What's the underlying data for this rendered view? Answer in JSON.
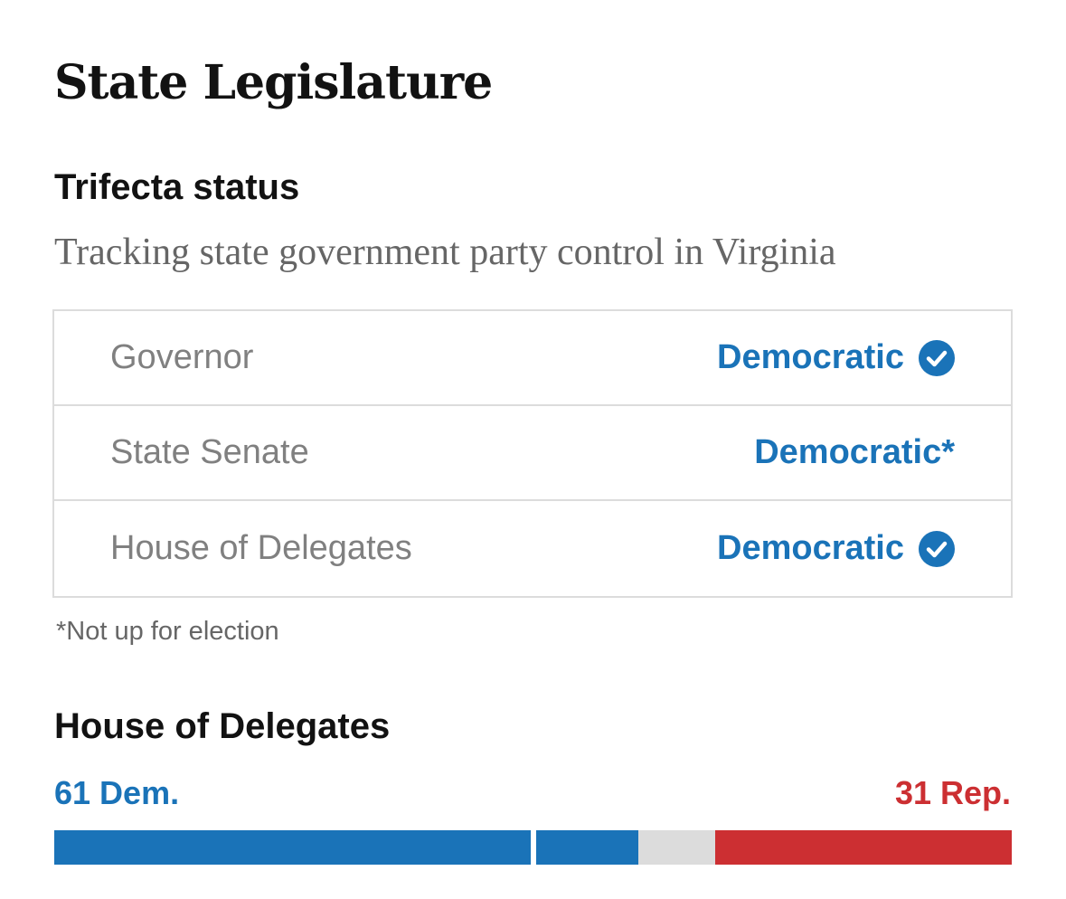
{
  "header": {
    "title": "State Legislature"
  },
  "trifecta": {
    "heading": "Trifecta status",
    "subtitle": "Tracking state government party control in Virginia",
    "rows": [
      {
        "label": "Governor",
        "value": "Democratic",
        "icon": "check-circle-icon"
      },
      {
        "label": "State Senate",
        "value": "Democratic*",
        "icon": null
      },
      {
        "label": "House of Delegates",
        "value": "Democratic",
        "icon": "check-circle-icon"
      }
    ],
    "footnote": "*Not up for election"
  },
  "house": {
    "heading": "House of Delegates",
    "dem_label": "61 Dem.",
    "rep_label": "31 Rep."
  },
  "seat_bar": {
    "total_seats": 100,
    "segments": [
      {
        "party": "dem",
        "seats": 50,
        "color": "#1a73b8"
      },
      {
        "party": "dem",
        "seats": 11,
        "color": "#1a73b8"
      },
      {
        "party": "undecided",
        "seats": 8,
        "color": "#dcdcdc"
      },
      {
        "party": "rep",
        "seats": 31,
        "color": "#cc2f32"
      }
    ]
  },
  "colors": {
    "democratic": "#1a73b8",
    "republican": "#cc2f32",
    "undecided": "#dcdcdc"
  }
}
